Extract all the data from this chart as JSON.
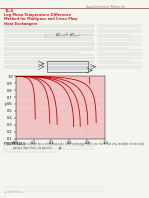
{
  "title": "Supplemental Material",
  "section_label": "11.4",
  "section_title_lines": [
    "Log Mean Temperature Difference",
    "Method for Multipass and Cross-Flow",
    "Heat Exchangers"
  ],
  "fig_label": "FIGURE 11S.1",
  "fig_caption": "Correction factor for a shell-and-tube heat exchanger with one shell and any multiple of two tube passes (two, four, six passes).",
  "chart": {
    "xlim": [
      0,
      1.0
    ],
    "ylim": [
      0.1,
      1.0
    ],
    "xlabel": "P",
    "ylabel": "F",
    "background_color": "#f2c4c4",
    "line_color": "#cc0000",
    "R_values": [
      0.2,
      0.4,
      0.6,
      0.8,
      1.0,
      1.5,
      2.0,
      4.0
    ]
  },
  "page_bg": "#f5f5f0",
  "text_color": "#444444",
  "header_color": "#cc2222",
  "red_line_color": "#cc2222",
  "body_text_color": "#555555"
}
